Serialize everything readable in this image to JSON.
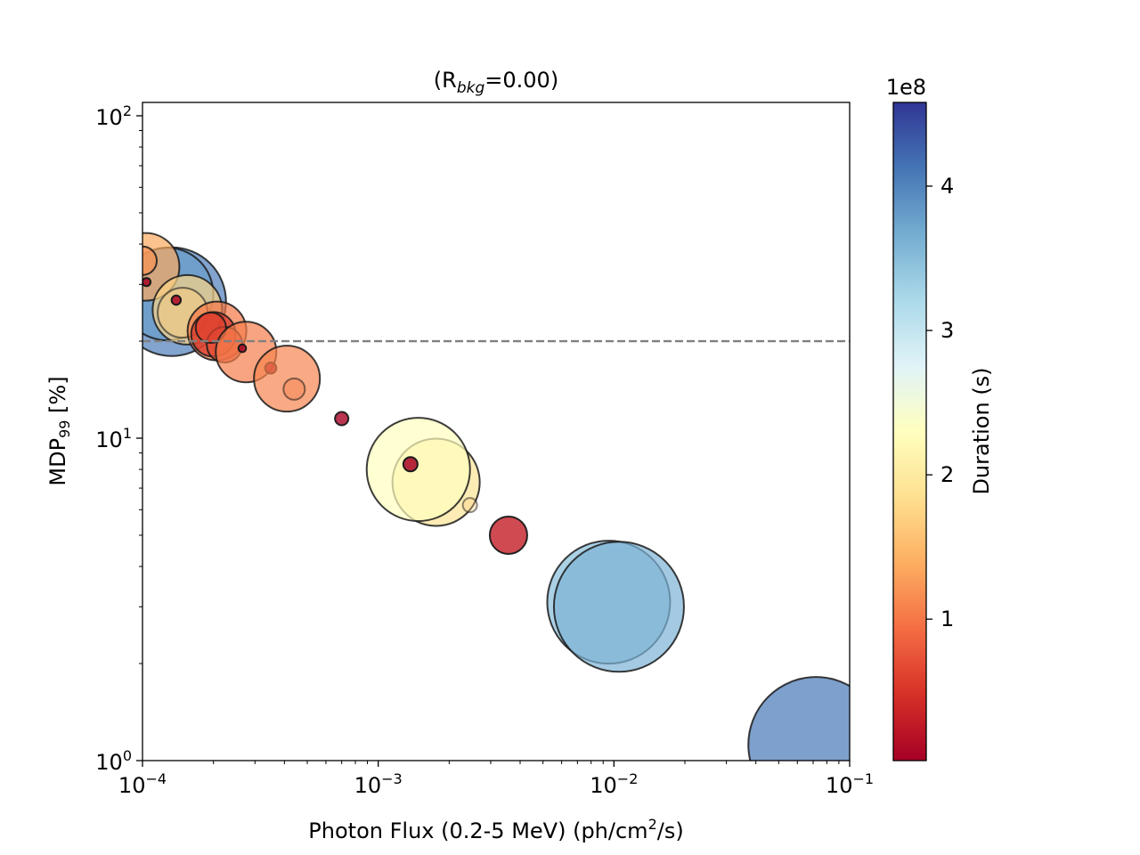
{
  "chart_data": {
    "type": "scatter",
    "title": {
      "prefix": "(R",
      "sub": "bkg",
      "suffix": "=0.00)"
    },
    "xlabel": {
      "main": "Photon Flux (0.2-5 MeV) (ph/cm",
      "sup": "2",
      "tail": "/s)"
    },
    "ylabel": {
      "main": "MDP",
      "sub": "99",
      "tail": " [%]"
    },
    "x_scale": "log",
    "y_scale": "log",
    "xlim": [
      0.0001,
      0.1
    ],
    "ylim": [
      1,
      110
    ],
    "x_ticks": [
      {
        "value": 0.0001,
        "base": "10",
        "exp": "−4"
      },
      {
        "value": 0.001,
        "base": "10",
        "exp": "−3"
      },
      {
        "value": 0.01,
        "base": "10",
        "exp": "−2"
      },
      {
        "value": 0.1,
        "base": "10",
        "exp": "−1"
      }
    ],
    "y_ticks": [
      {
        "value": 1,
        "base": "10",
        "exp": "0"
      },
      {
        "value": 10,
        "base": "10",
        "exp": "1"
      },
      {
        "value": 100,
        "base": "10",
        "exp": "2"
      }
    ],
    "threshold_line": {
      "y": 20,
      "style": "dashed",
      "color": "#808080"
    },
    "colorbar": {
      "label": "Duration (s)",
      "offset_text": "1e8",
      "min": 0.02,
      "max": 4.58,
      "ticks": [
        {
          "value": 1,
          "label": "1"
        },
        {
          "value": 2,
          "label": "2"
        },
        {
          "value": 3,
          "label": "3"
        },
        {
          "value": 4,
          "label": "4"
        }
      ],
      "colormap": "RdYlBu",
      "stops": [
        "#a50026",
        "#d73027",
        "#f46d43",
        "#fdae61",
        "#fee090",
        "#ffffbf",
        "#e0f3f8",
        "#abd9e9",
        "#74add1",
        "#4575b4",
        "#313695"
      ]
    },
    "points": [
      {
        "x": 0.000133,
        "y": 26.5,
        "duration": 4.05,
        "r_pct": 0.61,
        "alpha": 0.7
      },
      {
        "x": 0.000127,
        "y": 28.0,
        "duration": 3.8,
        "r_pct": 0.52,
        "alpha": 0.7
      },
      {
        "x": 0.000103,
        "y": 34.0,
        "duration": 1.35,
        "r_pct": 0.38,
        "alpha": 0.7
      },
      {
        "x": 0.0001,
        "y": 35.5,
        "duration": 1.2,
        "r_pct": 0.16,
        "alpha": 0.7
      },
      {
        "x": 0.000155,
        "y": 25.0,
        "duration": 1.75,
        "r_pct": 0.39,
        "alpha": 0.7
      },
      {
        "x": 0.000148,
        "y": 24.5,
        "duration": 1.65,
        "r_pct": 0.28,
        "alpha": 0.45
      },
      {
        "x": 0.000104,
        "y": 30.5,
        "duration": 0.05,
        "r_pct": 0.046,
        "alpha": 0.85
      },
      {
        "x": 0.000139,
        "y": 26.8,
        "duration": 0.06,
        "r_pct": 0.052,
        "alpha": 0.85
      },
      {
        "x": 0.000207,
        "y": 21.5,
        "duration": 1.0,
        "r_pct": 0.33,
        "alpha": 0.7
      },
      {
        "x": 0.0002,
        "y": 21.0,
        "duration": 0.5,
        "r_pct": 0.25,
        "alpha": 0.7
      },
      {
        "x": 0.000223,
        "y": 19.5,
        "duration": 0.7,
        "r_pct": 0.2,
        "alpha": 0.7
      },
      {
        "x": 0.000195,
        "y": 22.0,
        "duration": 0.6,
        "r_pct": 0.17,
        "alpha": 0.7
      },
      {
        "x": 0.000275,
        "y": 18.5,
        "duration": 1.05,
        "r_pct": 0.34,
        "alpha": 0.7
      },
      {
        "x": 0.000265,
        "y": 19.0,
        "duration": 0.05,
        "r_pct": 0.043,
        "alpha": 0.85
      },
      {
        "x": 0.00035,
        "y": 16.5,
        "duration": 0.05,
        "r_pct": 0.063,
        "alpha": 0.85
      },
      {
        "x": 0.00041,
        "y": 15.3,
        "duration": 1.1,
        "r_pct": 0.37,
        "alpha": 0.7
      },
      {
        "x": 0.00044,
        "y": 14.2,
        "duration": 1.05,
        "r_pct": 0.12,
        "alpha": 0.4
      },
      {
        "x": 0.0007,
        "y": 11.5,
        "duration": 0.05,
        "r_pct": 0.075,
        "alpha": 0.8
      },
      {
        "x": 0.00176,
        "y": 7.3,
        "duration": 1.9,
        "r_pct": 0.49,
        "alpha": 0.7
      },
      {
        "x": 0.00148,
        "y": 8.0,
        "duration": 2.3,
        "r_pct": 0.58,
        "alpha": 0.7
      },
      {
        "x": 0.00137,
        "y": 8.3,
        "duration": 0.05,
        "r_pct": 0.08,
        "alpha": 0.85
      },
      {
        "x": 0.00245,
        "y": 6.2,
        "duration": 1.7,
        "r_pct": 0.08,
        "alpha": 0.35
      },
      {
        "x": 0.00357,
        "y": 5.0,
        "duration": 0.3,
        "r_pct": 0.21,
        "alpha": 0.8
      },
      {
        "x": 0.0095,
        "y": 3.1,
        "duration": 3.5,
        "r_pct": 0.69,
        "alpha": 0.7
      },
      {
        "x": 0.0105,
        "y": 3.0,
        "duration": 3.6,
        "r_pct": 0.73,
        "alpha": 0.7
      },
      {
        "x": 0.072,
        "y": 1.12,
        "duration": 4.1,
        "r_pct": 0.76,
        "alpha": 0.7
      }
    ]
  }
}
